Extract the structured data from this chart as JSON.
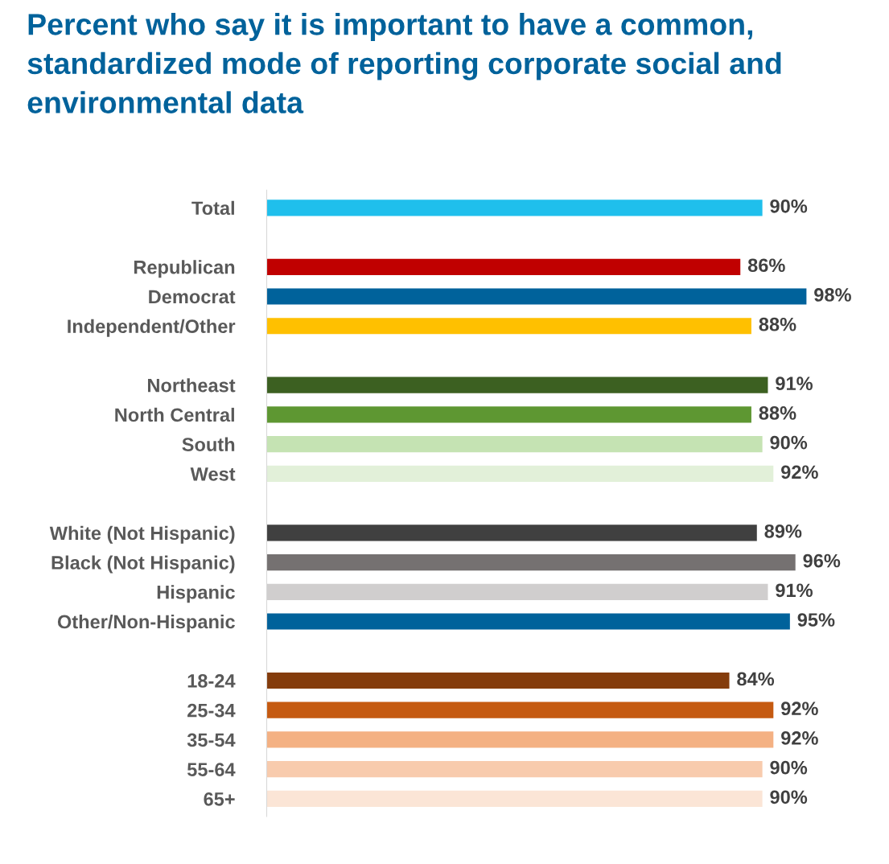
{
  "chart_data": {
    "type": "bar",
    "orientation": "horizontal",
    "title": "Percent who say it is important to have a common, standardized mode of reporting corporate social and environmental data",
    "categories": [
      "Total",
      null,
      "Republican",
      "Democrat",
      "Independent/Other",
      null,
      "Northeast",
      "North Central",
      "South",
      "West",
      null,
      "White (Not Hispanic)",
      "Black (Not Hispanic)",
      "Hispanic",
      "Other/Non-Hispanic",
      null,
      "18-24",
      "25-34",
      "35-54",
      "55-64",
      "65+"
    ],
    "values": [
      90,
      null,
      86,
      98,
      88,
      null,
      91,
      88,
      90,
      92,
      null,
      89,
      96,
      91,
      95,
      null,
      84,
      92,
      92,
      90,
      90
    ],
    "value_labels": [
      "90%",
      null,
      "86%",
      "98%",
      "88%",
      null,
      "91%",
      "88%",
      "90%",
      "92%",
      null,
      "89%",
      "96%",
      "91%",
      "95%",
      null,
      "84%",
      "92%",
      "92%",
      "90%",
      "90%"
    ],
    "colors": [
      "#1fbfec",
      null,
      "#c00000",
      "#00629b",
      "#ffc000",
      null,
      "#3c6021",
      "#5e9732",
      "#c5e3b3",
      "#e2f0d9",
      null,
      "#404040",
      "#757171",
      "#d0cece",
      "#00629b",
      null,
      "#843c0c",
      "#c55a11",
      "#f4b183",
      "#f8cbad",
      "#fbe5d6"
    ],
    "grid": false,
    "legend": false,
    "tick_labels": "y"
  }
}
